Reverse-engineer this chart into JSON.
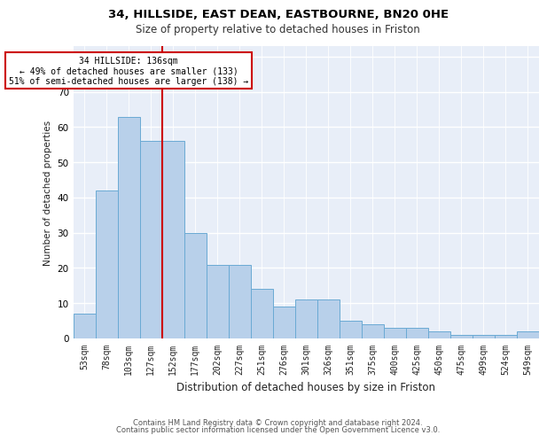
{
  "title1": "34, HILLSIDE, EAST DEAN, EASTBOURNE, BN20 0HE",
  "title2": "Size of property relative to detached houses in Friston",
  "xlabel": "Distribution of detached houses by size in Friston",
  "ylabel": "Number of detached properties",
  "categories": [
    "53sqm",
    "78sqm",
    "103sqm",
    "127sqm",
    "152sqm",
    "177sqm",
    "202sqm",
    "227sqm",
    "251sqm",
    "276sqm",
    "301sqm",
    "326sqm",
    "351sqm",
    "375sqm",
    "400sqm",
    "425sqm",
    "450sqm",
    "475sqm",
    "499sqm",
    "524sqm",
    "549sqm"
  ],
  "values": [
    7,
    42,
    63,
    56,
    56,
    30,
    21,
    21,
    14,
    9,
    11,
    11,
    5,
    4,
    3,
    3,
    2,
    1,
    1,
    1,
    2
  ],
  "bar_color": "#b8d0ea",
  "bar_edge_color": "#6aaad4",
  "red_line_color": "#cc0000",
  "annotation_text": "34 HILLSIDE: 136sqm\n← 49% of detached houses are smaller (133)\n51% of semi-detached houses are larger (138) →",
  "annotation_box_color": "#ffffff",
  "annotation_box_edge_color": "#cc0000",
  "ylim": [
    0,
    83
  ],
  "yticks": [
    0,
    10,
    20,
    30,
    40,
    50,
    60,
    70,
    80
  ],
  "background_color": "#e8eef8",
  "grid_color": "#ffffff",
  "footer1": "Contains HM Land Registry data © Crown copyright and database right 2024.",
  "footer2": "Contains public sector information licensed under the Open Government Licence v3.0."
}
